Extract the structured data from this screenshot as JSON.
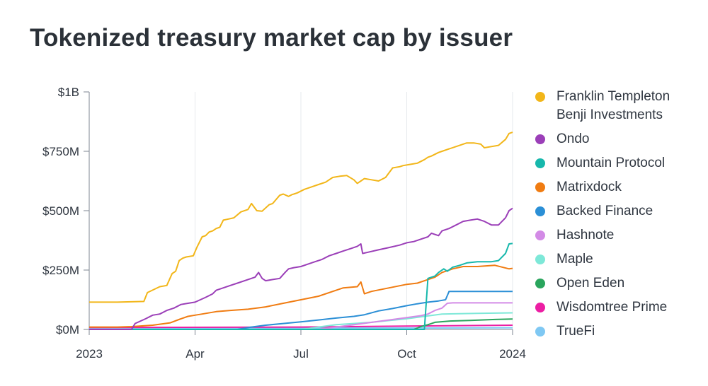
{
  "chart_data": {
    "type": "line",
    "title": "Tokenized treasury market cap by issuer",
    "xlabel": "",
    "ylabel": "",
    "x_range": [
      "2023-01-01",
      "2024-01-01"
    ],
    "x_ticks": [
      {
        "label": "2023",
        "month": 0
      },
      {
        "label": "Apr",
        "month": 3
      },
      {
        "label": "Jul",
        "month": 6
      },
      {
        "label": "Oct",
        "month": 9
      },
      {
        "label": "2024",
        "month": 12
      }
    ],
    "ylim": [
      0,
      1000
    ],
    "y_unit": "millions USD",
    "y_ticks": [
      {
        "label": "$0M",
        "value": 0
      },
      {
        "label": "$250M",
        "value": 250
      },
      {
        "label": "$500M",
        "value": 500
      },
      {
        "label": "$750M",
        "value": 750
      },
      {
        "label": "$1B",
        "value": 1000
      }
    ],
    "grid": "vertical",
    "legend_position": "right",
    "series": [
      {
        "name": "Franklin Templeton Benji Investments",
        "color": "#f2b619",
        "x": [
          0,
          0.8,
          1.55,
          1.65,
          2.0,
          2.2,
          2.35,
          2.45,
          2.55,
          2.6,
          2.65,
          2.75,
          2.95,
          3.05,
          3.2,
          3.3,
          3.4,
          3.5,
          3.6,
          3.7,
          3.8,
          3.95,
          4.1,
          4.3,
          4.5,
          4.6,
          4.75,
          4.9,
          5.1,
          5.2,
          5.4,
          5.5,
          5.65,
          5.75,
          5.8,
          5.9,
          6.1,
          6.3,
          6.5,
          6.7,
          6.9,
          7.1,
          7.3,
          7.5,
          7.6,
          7.7,
          7.8,
          8.0,
          8.2,
          8.4,
          8.6,
          8.8,
          8.9,
          9.1,
          9.3,
          9.5,
          9.6,
          9.7,
          9.9,
          10.0,
          10.2,
          10.5,
          10.7,
          10.9,
          11.1,
          11.2,
          11.4,
          11.6,
          11.8,
          11.9,
          12.0
        ],
        "values": [
          115,
          115,
          118,
          155,
          180,
          185,
          235,
          245,
          290,
          295,
          300,
          305,
          310,
          345,
          390,
          395,
          410,
          415,
          425,
          430,
          460,
          465,
          470,
          495,
          505,
          530,
          500,
          498,
          525,
          530,
          565,
          570,
          560,
          568,
          570,
          575,
          590,
          600,
          610,
          620,
          640,
          645,
          648,
          630,
          615,
          625,
          635,
          630,
          625,
          640,
          680,
          685,
          690,
          695,
          700,
          715,
          725,
          730,
          745,
          750,
          760,
          775,
          785,
          785,
          780,
          765,
          770,
          775,
          800,
          825,
          830
        ]
      },
      {
        "name": "Ondo",
        "color": "#9b3fb8",
        "x": [
          0,
          1.2,
          1.3,
          1.6,
          1.8,
          2.0,
          2.2,
          2.4,
          2.6,
          2.8,
          3.0,
          3.3,
          3.5,
          3.6,
          3.8,
          4.0,
          4.2,
          4.5,
          4.7,
          4.8,
          4.9,
          5.0,
          5.2,
          5.4,
          5.55,
          5.65,
          5.8,
          6.0,
          6.2,
          6.4,
          6.6,
          6.8,
          7.0,
          7.2,
          7.4,
          7.6,
          7.7,
          7.75,
          7.9,
          8.2,
          8.5,
          8.8,
          9.0,
          9.2,
          9.4,
          9.6,
          9.7,
          9.9,
          10.0,
          10.2,
          10.4,
          10.6,
          10.8,
          11.0,
          11.2,
          11.4,
          11.6,
          11.8,
          11.9,
          12.0
        ],
        "values": [
          0,
          0,
          25,
          45,
          60,
          65,
          80,
          90,
          105,
          110,
          115,
          135,
          150,
          165,
          175,
          185,
          195,
          210,
          220,
          240,
          215,
          205,
          210,
          215,
          240,
          255,
          260,
          265,
          275,
          285,
          295,
          310,
          320,
          330,
          340,
          350,
          360,
          320,
          325,
          335,
          345,
          355,
          365,
          370,
          380,
          390,
          405,
          395,
          415,
          425,
          440,
          455,
          460,
          465,
          455,
          440,
          440,
          470,
          500,
          510
        ]
      },
      {
        "name": "Mountain Protocol",
        "color": "#17b8ac",
        "x": [
          0,
          9.5,
          9.6,
          9.8,
          9.9,
          10.05,
          10.15,
          10.3,
          10.5,
          10.7,
          11.0,
          11.4,
          11.6,
          11.8,
          11.9,
          12.0
        ],
        "values": [
          0,
          0,
          215,
          225,
          240,
          255,
          245,
          262,
          270,
          280,
          285,
          285,
          290,
          320,
          360,
          362
        ]
      },
      {
        "name": "Matrixdock",
        "color": "#f07c12",
        "x": [
          0,
          0.8,
          1.2,
          1.5,
          1.8,
          2.0,
          2.3,
          2.6,
          2.8,
          3.0,
          3.2,
          3.6,
          4.0,
          4.5,
          5.0,
          5.5,
          6.0,
          6.5,
          7.0,
          7.2,
          7.6,
          7.7,
          7.8,
          8.0,
          8.5,
          9.0,
          9.3,
          9.6,
          9.8,
          10.0,
          10.3,
          10.6,
          11.0,
          11.5,
          11.9,
          12.0
        ],
        "values": [
          10,
          10,
          12,
          15,
          18,
          22,
          28,
          45,
          55,
          60,
          65,
          75,
          80,
          85,
          95,
          110,
          125,
          140,
          165,
          175,
          180,
          200,
          150,
          160,
          175,
          190,
          195,
          210,
          220,
          240,
          255,
          265,
          265,
          270,
          255,
          257
        ]
      },
      {
        "name": "Backed Finance",
        "color": "#2b8fd6",
        "x": [
          0,
          4.2,
          4.6,
          5.0,
          5.5,
          6.0,
          6.5,
          7.0,
          7.5,
          7.8,
          8.2,
          8.6,
          9.0,
          9.3,
          9.6,
          9.9,
          10.1,
          10.2,
          11.0,
          12.0
        ],
        "values": [
          0,
          0,
          10,
          18,
          25,
          32,
          40,
          48,
          55,
          62,
          78,
          88,
          100,
          108,
          115,
          120,
          125,
          160,
          160,
          160
        ]
      },
      {
        "name": "Hashnote",
        "color": "#d38be6",
        "x": [
          0,
          6.5,
          8.5,
          9.0,
          9.4,
          9.6,
          9.8,
          9.9,
          10.0,
          10.15,
          10.3,
          11.0,
          12.0
        ],
        "values": [
          0,
          0,
          40,
          50,
          58,
          65,
          80,
          85,
          90,
          110,
          112,
          112,
          112
        ]
      },
      {
        "name": "Maple",
        "color": "#7ee8d8",
        "x": [
          0,
          6.0,
          7.0,
          8.0,
          9.0,
          9.5,
          10.0,
          11.0,
          12.0
        ],
        "values": [
          0,
          0,
          20,
          30,
          45,
          55,
          65,
          68,
          70
        ]
      },
      {
        "name": "Open Eden",
        "color": "#2aa55d",
        "x": [
          0,
          9.2,
          9.4,
          9.6,
          9.8,
          10.2,
          10.8,
          11.5,
          12.0
        ],
        "values": [
          0,
          0,
          12,
          20,
          30,
          35,
          38,
          42,
          44
        ]
      },
      {
        "name": "Wisdomtree Prime",
        "color": "#ec1ea3",
        "x": [
          0,
          6.0,
          9.0,
          12.0
        ],
        "values": [
          8,
          10,
          14,
          18
        ]
      },
      {
        "name": "TrueFi",
        "color": "#7fc8f3",
        "x": [
          0,
          6.0,
          9.0,
          12.0
        ],
        "values": [
          5,
          6,
          6,
          7
        ]
      }
    ]
  }
}
